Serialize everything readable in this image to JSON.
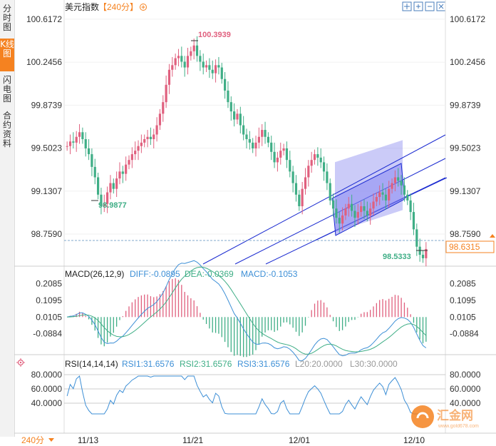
{
  "header": {
    "title": "美元指数",
    "period_tag": "【240分】"
  },
  "sidebar": {
    "tabs": [
      {
        "label": "分时图",
        "active": false
      },
      {
        "label": "K线图",
        "active": true
      },
      {
        "label": "闪电图",
        "active": false
      },
      {
        "label": "合约资料",
        "active": false
      }
    ]
  },
  "toolbar": {
    "icons": [
      "crosshair-icon",
      "zoom-in-icon",
      "zoom-out-icon",
      "refresh-icon"
    ]
  },
  "price_axis": {
    "ticks": [
      "100.6172",
      "100.2456",
      "99.8739",
      "99.5023",
      "99.1307",
      "98.7590"
    ]
  },
  "price_annotations": {
    "high": "100.3939",
    "low_left": "98.9877",
    "low_right": "98.5333",
    "current": "98.6315"
  },
  "macd": {
    "label": "MACD(26,12,9)",
    "diff": "DIFF:-0.0895",
    "dea": "DEA:-0.0369",
    "macd": "MACD:-0.1053",
    "ticks": [
      "0.2085",
      "0.1095",
      "0.0105",
      "-0.0884"
    ]
  },
  "rsi": {
    "label": "RSI(14,14,14)",
    "rsi1": "RSI1:31.6576",
    "rsi2": "RSI2:31.6576",
    "rsi3": "RSI3:31.6576",
    "l20": "L20:20.0000",
    "l30": "L30:30.0000",
    "ticks": [
      "80.0000",
      "60.0000",
      "40.0000"
    ]
  },
  "time_axis": {
    "period": "240分",
    "dates": [
      "11/13",
      "11/21",
      "12/01",
      "12/10"
    ]
  },
  "watermark": {
    "text": "汇金网",
    "url": "www.gold678.com"
  },
  "colors": {
    "up": "#e0607e",
    "down": "#3fae86",
    "accent": "#f58220",
    "channel": "#1a2ad0",
    "diff": "#3d8fd6",
    "dea": "#3fae86"
  },
  "chart_data": {
    "type": "candlestick",
    "title": "美元指数",
    "timeframe": "240分",
    "y_ticks": [
      100.6172,
      100.2456,
      99.8739,
      99.5023,
      99.1307,
      98.759
    ],
    "ylim": [
      98.5,
      100.66
    ],
    "x_ticks": [
      "11/13",
      "11/21",
      "12/01",
      "12/10"
    ],
    "high": 100.3939,
    "low_left": 98.9877,
    "low_right": 98.5333,
    "last": 98.6315,
    "close_series": [
      99.52,
      99.56,
      99.55,
      99.6,
      99.64,
      99.58,
      99.5,
      99.45,
      99.34,
      99.25,
      99.1,
      99.0,
      99.02,
      99.12,
      99.2,
      99.15,
      99.24,
      99.3,
      99.28,
      99.36,
      99.4,
      99.45,
      99.48,
      99.52,
      99.55,
      99.58,
      99.6,
      99.58,
      99.62,
      99.7,
      99.8,
      99.9,
      100.05,
      100.18,
      100.22,
      100.28,
      100.3,
      100.25,
      100.2,
      100.3,
      100.34,
      100.39,
      100.3,
      100.25,
      100.2,
      100.22,
      100.18,
      100.15,
      100.22,
      100.2,
      100.1,
      100.0,
      99.9,
      99.82,
      99.75,
      99.8,
      99.7,
      99.62,
      99.58,
      99.55,
      99.5,
      99.55,
      99.6,
      99.66,
      99.6,
      99.55,
      99.47,
      99.38,
      99.42,
      99.48,
      99.5,
      99.4,
      99.3,
      99.2,
      99.1,
      99.0,
      99.15,
      99.25,
      99.35,
      99.4,
      99.45,
      99.42,
      99.38,
      99.3,
      99.2,
      99.05,
      98.98,
      98.9,
      98.85,
      98.92,
      98.98,
      99.02,
      98.96,
      98.9,
      98.95,
      99.0,
      98.96,
      98.92,
      98.98,
      99.04,
      99.08,
      99.12,
      99.1,
      99.05,
      99.15,
      99.2,
      99.25,
      99.22,
      99.18,
      99.1,
      99.05,
      98.95,
      98.8,
      98.65,
      98.58,
      98.55,
      98.63
    ],
    "macd_ticks": [
      0.2085,
      0.1095,
      0.0105,
      -0.0884
    ],
    "macd_values": {
      "DIFF": -0.0895,
      "DEA": -0.0369,
      "MACD": -0.1053
    },
    "rsi_ticks": [
      80,
      60,
      40
    ],
    "rsi_values": {
      "RSI1": 31.6576,
      "RSI2": 31.6576,
      "RSI3": 31.6576,
      "L20": 20,
      "L30": 30
    },
    "grid": true
  }
}
